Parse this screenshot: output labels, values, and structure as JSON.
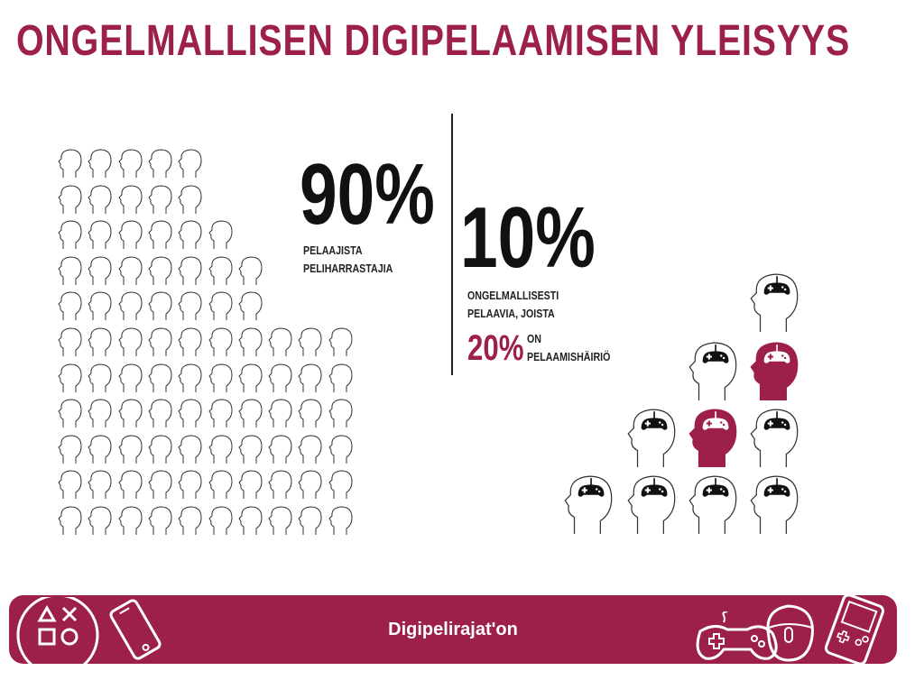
{
  "title": "ONGELMALLISEN DIGIPELAAMISEN YLEISYYS",
  "colors": {
    "accent": "#9c1f4c",
    "text": "#111111",
    "outline": "#333333"
  },
  "stat_hobby": {
    "percent": "90%",
    "caption_line1": "PELAAJISTA",
    "caption_line2": "PELIHARRASTAJIA"
  },
  "stat_problem": {
    "percent": "10%",
    "caption_line1": "ONGELMALLISESTI",
    "caption_line2": "PELAAVIA, JOISTA",
    "sub_percent": "20%",
    "sub_on": "ON",
    "sub_label": "PELAAMISHÄIRIÖ"
  },
  "footer": {
    "text": "Digipelirajat'on"
  },
  "icons": {
    "person": "person-head-icon",
    "gamer": "gamer-head-icon",
    "gamepad": "gamepad-icon",
    "phone": "phone-icon",
    "mouse": "mouse-icon",
    "handheld": "handheld-console-icon",
    "buttons": "console-buttons-icon"
  }
}
